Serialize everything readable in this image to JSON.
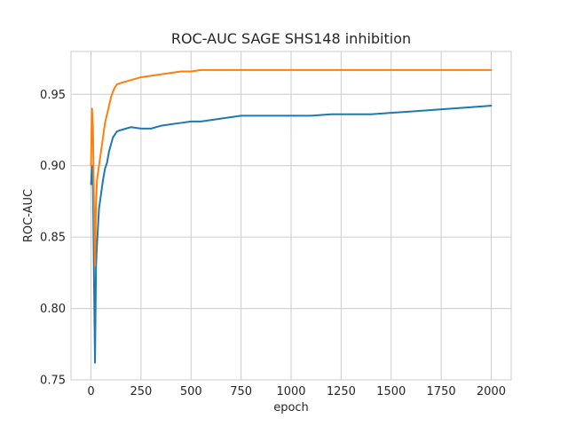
{
  "chart_data": {
    "type": "line",
    "title": "ROC-AUC SAGE SHS148 inhibition",
    "xlabel": "epoch",
    "ylabel": "ROC-AUC",
    "xlim": [
      -100,
      2100
    ],
    "ylim": [
      0.75,
      0.98
    ],
    "xticks": [
      0,
      250,
      500,
      750,
      1000,
      1250,
      1500,
      1750,
      2000
    ],
    "yticks": [
      0.75,
      0.8,
      0.85,
      0.9,
      0.95
    ],
    "ytick_labels": [
      "0.75",
      "0.80",
      "0.85",
      "0.90",
      "0.95"
    ],
    "grid": true,
    "series": [
      {
        "color": "#1f77b4",
        "x": [
          0,
          5,
          10,
          15,
          20,
          25,
          30,
          40,
          50,
          60,
          70,
          80,
          90,
          100,
          110,
          120,
          130,
          150,
          175,
          200,
          250,
          300,
          350,
          400,
          450,
          500,
          550,
          600,
          650,
          700,
          750,
          800,
          850,
          900,
          950,
          1000,
          1100,
          1200,
          1300,
          1400,
          1500,
          1600,
          1700,
          1800,
          1900,
          2000
        ],
        "y": [
          0.887,
          0.9,
          0.884,
          0.82,
          0.762,
          0.83,
          0.845,
          0.87,
          0.88,
          0.89,
          0.898,
          0.902,
          0.91,
          0.915,
          0.92,
          0.922,
          0.924,
          0.925,
          0.926,
          0.927,
          0.926,
          0.926,
          0.928,
          0.929,
          0.93,
          0.931,
          0.931,
          0.932,
          0.933,
          0.934,
          0.935,
          0.935,
          0.935,
          0.935,
          0.935,
          0.935,
          0.935,
          0.936,
          0.936,
          0.936,
          0.937,
          0.938,
          0.939,
          0.94,
          0.941,
          0.942
        ]
      },
      {
        "color": "#ff7f0e",
        "x": [
          0,
          5,
          10,
          15,
          20,
          25,
          30,
          40,
          50,
          60,
          70,
          80,
          90,
          100,
          110,
          120,
          130,
          150,
          175,
          200,
          250,
          300,
          350,
          400,
          450,
          500,
          550,
          600,
          700,
          800,
          900,
          1000,
          1200,
          1400,
          1600,
          1800,
          2000
        ],
        "y": [
          0.9,
          0.94,
          0.925,
          0.87,
          0.83,
          0.875,
          0.89,
          0.9,
          0.91,
          0.92,
          0.93,
          0.936,
          0.942,
          0.948,
          0.952,
          0.955,
          0.957,
          0.958,
          0.959,
          0.96,
          0.962,
          0.963,
          0.964,
          0.965,
          0.966,
          0.966,
          0.967,
          0.967,
          0.967,
          0.967,
          0.967,
          0.967,
          0.967,
          0.967,
          0.967,
          0.967,
          0.967
        ]
      }
    ]
  }
}
